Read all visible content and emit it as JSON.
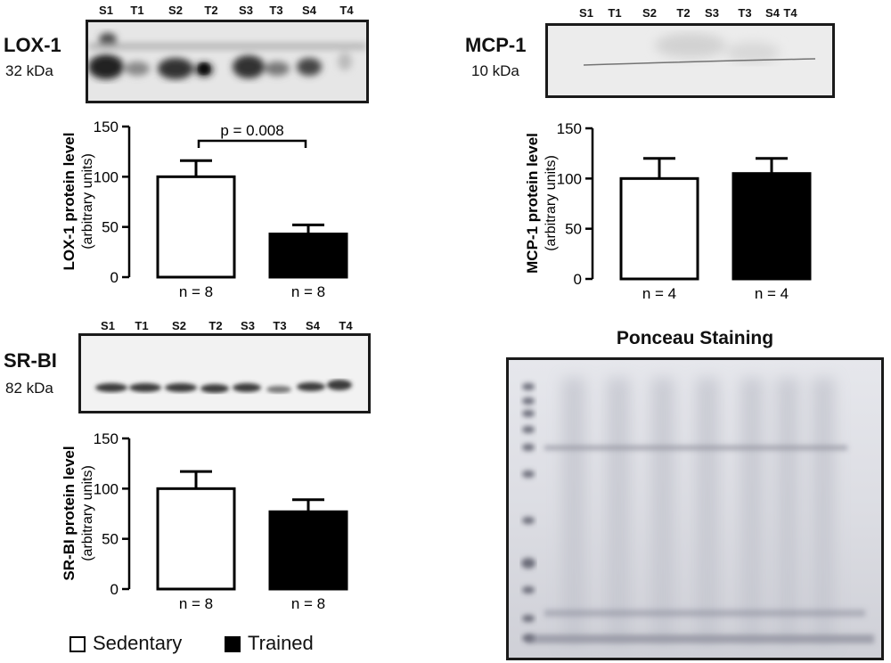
{
  "panels": {
    "lox1": {
      "name": "LOX-1",
      "kda": "32 kDa"
    },
    "mcp1": {
      "name": "MCP-1",
      "kda": "10 kDa"
    },
    "srbi": {
      "name": "SR-BI",
      "kda": "82 kDa"
    },
    "ponceau": {
      "title": "Ponceau Staining"
    }
  },
  "lane_labels": [
    "S1",
    "T1",
    "S2",
    "T2",
    "S3",
    "T3",
    "S4",
    "T4"
  ],
  "legend": {
    "sedentary": "Sedentary",
    "trained": "Trained"
  },
  "chart_data": [
    {
      "type": "bar",
      "id": "lox1",
      "ylabel": "LOX-1 protein level",
      "ylabel_sub": "(arbitrary units)",
      "ylim": [
        0,
        150
      ],
      "yticks": [
        "0",
        "50",
        "100",
        "150"
      ],
      "categories": [
        "n = 8",
        "n = 8"
      ],
      "series": [
        {
          "values": [
            100,
            43
          ],
          "errors": [
            16,
            9
          ]
        }
      ],
      "colors": [
        "#ffffff",
        "#000000"
      ],
      "annotation": "p = 0.008"
    },
    {
      "type": "bar",
      "id": "mcp1",
      "ylabel": "MCP-1 protein level",
      "ylabel_sub": "(arbitrary units)",
      "ylim": [
        0,
        150
      ],
      "yticks": [
        "0",
        "50",
        "100",
        "150"
      ],
      "categories": [
        "n = 4",
        "n = 4"
      ],
      "series": [
        {
          "values": [
            100,
            105
          ],
          "errors": [
            20,
            15
          ]
        }
      ],
      "colors": [
        "#ffffff",
        "#000000"
      ]
    },
    {
      "type": "bar",
      "id": "srbi",
      "ylabel": "SR-BI protein level",
      "ylabel_sub": "(arbitrary units)",
      "ylim": [
        0,
        150
      ],
      "yticks": [
        "0",
        "50",
        "100",
        "150"
      ],
      "categories": [
        "n = 8",
        "n = 8"
      ],
      "series": [
        {
          "values": [
            100,
            77
          ],
          "errors": [
            17,
            12
          ]
        }
      ],
      "colors": [
        "#ffffff",
        "#000000"
      ]
    }
  ]
}
